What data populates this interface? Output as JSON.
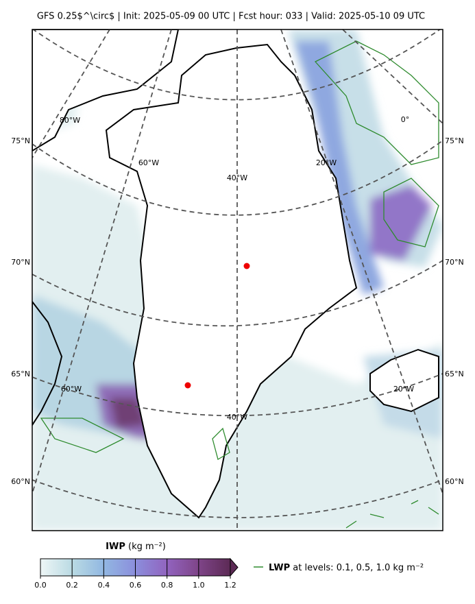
{
  "header": {
    "title": "GFS 0.25$^\\circ$  |  Init: 2025-05-09 00 UTC  |  Fcst hour: 033  |  Valid: 2025-05-10 09 UTC"
  },
  "map": {
    "lat_labels": [
      "75°N",
      "70°N",
      "65°N",
      "60°N"
    ],
    "lon_labels_top": [
      "80°W",
      "60°W",
      "40°W",
      "20°W",
      "0°"
    ],
    "lon_labels_bottom": [
      "60°W",
      "40°W",
      "20°W"
    ]
  },
  "colorbar": {
    "label_name": "IWP",
    "label_units": "(kg m⁻²)",
    "ticks": [
      "0.0",
      "0.2",
      "0.4",
      "0.6",
      "0.8",
      "1.0",
      "1.2"
    ]
  },
  "legend": {
    "name": "LWP",
    "text": "at levels: 0.1, 0.5, 1.0  kg m⁻²"
  }
}
